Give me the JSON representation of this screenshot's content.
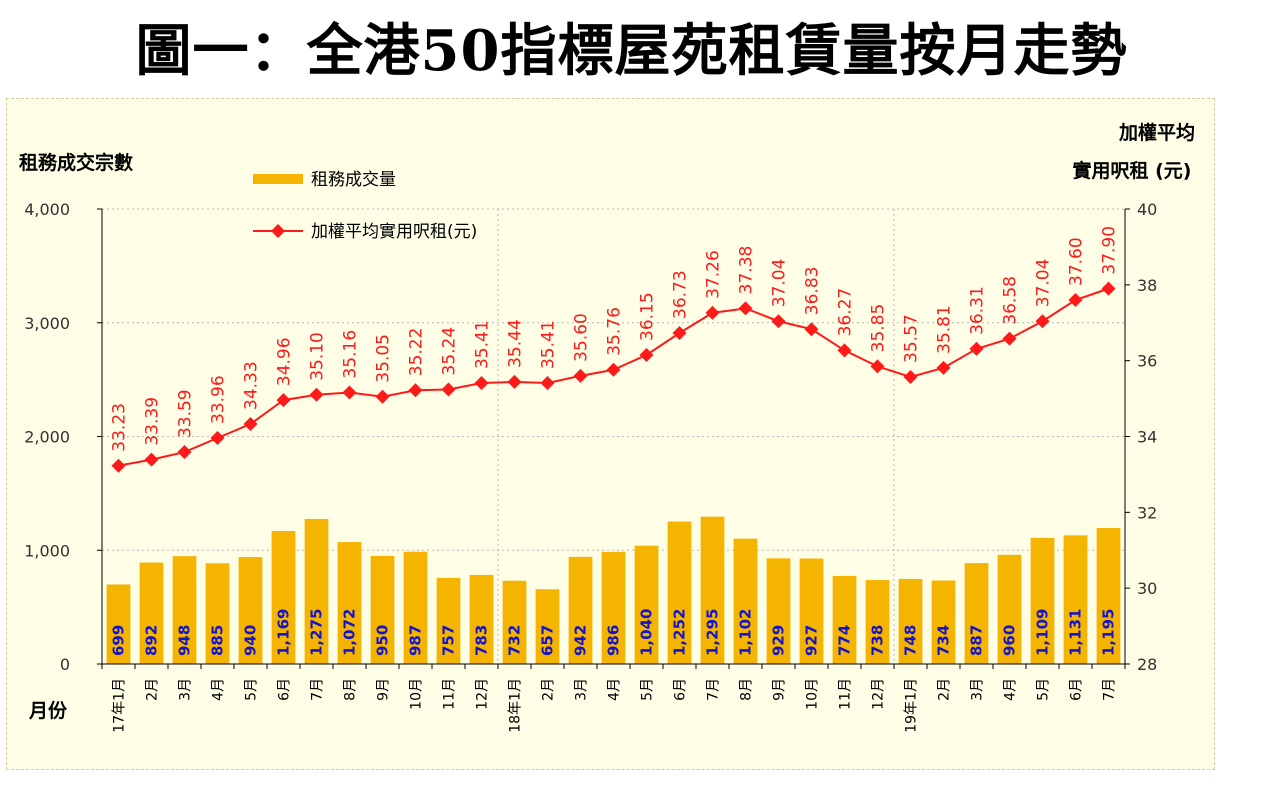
{
  "title": "圖一：全港50指標屋苑租賃量按月走勢",
  "chart_data": {
    "type": "bar+line",
    "left_axis_label": "租務成交宗數",
    "right_axis_label_line1": "加權平均",
    "right_axis_label_line2": "實用呎租 (元)",
    "x_axis_label": "月份",
    "left_axis_ticks": [
      "4,000",
      "3,000",
      "2,000",
      "1,000",
      "0"
    ],
    "right_axis_ticks": [
      "40",
      "38",
      "36",
      "34",
      "32",
      "30",
      "28"
    ],
    "ylim_left": [
      0,
      4000
    ],
    "ylim_right": [
      28,
      40
    ],
    "categories": [
      "17年1月",
      "2月",
      "3月",
      "4月",
      "5月",
      "6月",
      "7月",
      "8月",
      "9月",
      "10月",
      "11月",
      "12月",
      "18年1月",
      "2月",
      "3月",
      "4月",
      "5月",
      "6月",
      "7月",
      "8月",
      "9月",
      "10月",
      "11月",
      "12月",
      "19年1月",
      "2月",
      "3月",
      "4月",
      "5月",
      "6月",
      "7月"
    ],
    "series": [
      {
        "name": "租務成交量",
        "type": "bar",
        "color": "#f5b400",
        "values": [
          699,
          892,
          948,
          885,
          940,
          1169,
          1275,
          1072,
          950,
          987,
          757,
          783,
          732,
          657,
          942,
          986,
          1040,
          1252,
          1295,
          1102,
          929,
          927,
          774,
          738,
          748,
          734,
          887,
          960,
          1109,
          1131,
          1195
        ],
        "labels": [
          "699",
          "892",
          "948",
          "885",
          "940",
          "1,169",
          "1,275",
          "1,072",
          "950",
          "987",
          "757",
          "783",
          "732",
          "657",
          "942",
          "986",
          "1,040",
          "1,252",
          "1,295",
          "1,102",
          "929",
          "927",
          "774",
          "738",
          "748",
          "734",
          "887",
          "960",
          "1,109",
          "1,131",
          "1,195"
        ]
      },
      {
        "name": "加權平均實用呎租(元)",
        "type": "line",
        "color": "#ff1a1a",
        "values": [
          33.23,
          33.39,
          33.59,
          33.96,
          34.33,
          34.96,
          35.1,
          35.16,
          35.05,
          35.22,
          35.24,
          35.41,
          35.44,
          35.41,
          35.6,
          35.76,
          36.15,
          36.73,
          37.26,
          37.38,
          37.04,
          36.83,
          36.27,
          35.85,
          35.57,
          35.81,
          36.31,
          36.58,
          37.04,
          37.6,
          37.9
        ],
        "labels": [
          "33.23",
          "33.39",
          "33.59",
          "33.96",
          "34.33",
          "34.96",
          "35.10",
          "35.16",
          "35.05",
          "35.22",
          "35.24",
          "35.41",
          "35.44",
          "35.41",
          "35.60",
          "35.76",
          "36.15",
          "36.73",
          "37.26",
          "37.38",
          "37.04",
          "36.83",
          "36.27",
          "35.85",
          "35.57",
          "35.81",
          "36.31",
          "36.58",
          "37.04",
          "37.60",
          "37.90"
        ]
      }
    ],
    "legend": {
      "position": "top-left"
    }
  }
}
